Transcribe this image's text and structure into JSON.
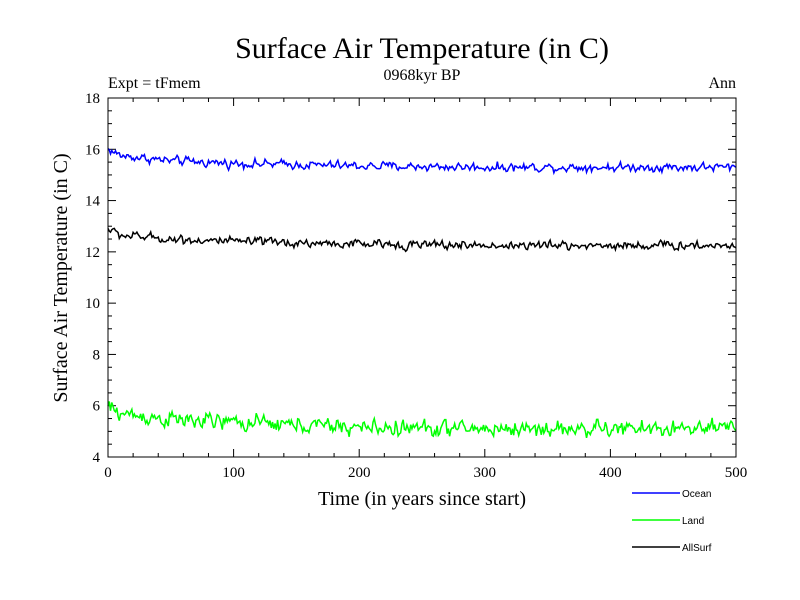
{
  "chart_data": {
    "type": "line",
    "title": "Surface Air Temperature (in C)",
    "subtitle": "0968kyr BP",
    "left_label": "Expt = tFmem",
    "right_label": "Ann",
    "xlabel": "Time (in years since start)",
    "ylabel": "Surface Air Temperature (in C)",
    "xlim": [
      0,
      500
    ],
    "ylim": [
      4,
      18
    ],
    "xticks": [
      0,
      100,
      200,
      300,
      400,
      500
    ],
    "yticks": [
      4,
      6,
      8,
      10,
      12,
      14,
      16,
      18
    ],
    "x_tick_labels": [
      "0",
      "100",
      "200",
      "300",
      "400",
      "500"
    ],
    "y_tick_labels": [
      "4",
      "6",
      "8",
      "10",
      "12",
      "14",
      "16",
      "18"
    ],
    "x_minor_step": 20,
    "y_minor_step": 0.5,
    "n_years": 500,
    "series": [
      {
        "name": "Ocean",
        "color": "#0000ff",
        "trend_x": [
          0,
          10,
          50,
          100,
          200,
          300,
          400,
          500
        ],
        "trend_y": [
          16.0,
          15.75,
          15.55,
          15.45,
          15.35,
          15.3,
          15.3,
          15.3
        ],
        "noise": 0.08
      },
      {
        "name": "Land",
        "color": "#00ff00",
        "trend_x": [
          0,
          10,
          50,
          100,
          200,
          300,
          400,
          500
        ],
        "trend_y": [
          5.95,
          5.7,
          5.45,
          5.35,
          5.15,
          5.1,
          5.1,
          5.1
        ],
        "noise": 0.15
      },
      {
        "name": "AllSurf",
        "color": "#000000",
        "trend_x": [
          0,
          10,
          50,
          100,
          200,
          300,
          400,
          500
        ],
        "trend_y": [
          12.9,
          12.65,
          12.5,
          12.4,
          12.3,
          12.25,
          12.25,
          12.25
        ],
        "noise": 0.08
      }
    ]
  }
}
